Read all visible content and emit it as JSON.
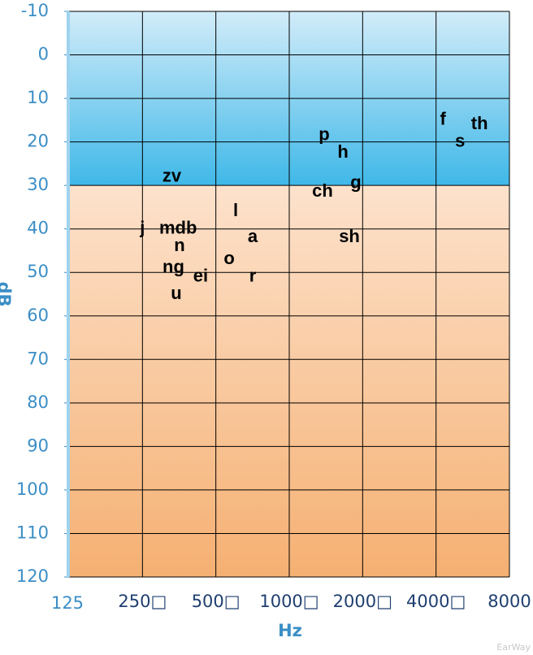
{
  "chart_data": {
    "type": "scatter",
    "x_label": "Hz",
    "y_label": "dB",
    "watermark": "EarWay",
    "x_log": true,
    "y_inverted": true,
    "grid": true,
    "xlim": [
      125,
      8000
    ],
    "ylim": [
      -10,
      120
    ],
    "xticks": [
      125,
      {
        "value": 250,
        "label": "250□"
      },
      {
        "value": 500,
        "label": "500□"
      },
      {
        "value": 1000,
        "label": "1000□"
      },
      {
        "value": 2000,
        "label": "2000□"
      },
      {
        "value": 4000,
        "label": "4000□"
      },
      8000
    ],
    "yticks": [
      -10,
      0,
      10,
      20,
      30,
      40,
      50,
      60,
      70,
      80,
      90,
      100,
      110,
      120
    ],
    "bands": [
      {
        "from": -10,
        "to": 30,
        "color_top": "#d2ecf9",
        "color_bottom": "#3fb8e8"
      },
      {
        "from": 30,
        "to": 120,
        "color_top": "#fde2cc",
        "color_bottom": "#f5b072"
      }
    ],
    "points": [
      {
        "label": "zv",
        "x": 330,
        "y": 28
      },
      {
        "label": "j",
        "x": 250,
        "y": 40
      },
      {
        "label": "mdb",
        "x": 350,
        "y": 40
      },
      {
        "label": "n",
        "x": 355,
        "y": 44
      },
      {
        "label": "ng",
        "x": 335,
        "y": 49
      },
      {
        "label": "ei",
        "x": 433,
        "y": 51
      },
      {
        "label": "u",
        "x": 344,
        "y": 55
      },
      {
        "label": "l",
        "x": 603,
        "y": 36
      },
      {
        "label": "a",
        "x": 708,
        "y": 42
      },
      {
        "label": "o",
        "x": 567,
        "y": 47
      },
      {
        "label": "r",
        "x": 708,
        "y": 51
      },
      {
        "label": "p",
        "x": 1390,
        "y": 18.5
      },
      {
        "label": "h",
        "x": 1660,
        "y": 22.5
      },
      {
        "label": "ch",
        "x": 1370,
        "y": 31.5
      },
      {
        "label": "g",
        "x": 1875,
        "y": 29.5
      },
      {
        "label": "sh",
        "x": 1765,
        "y": 42
      },
      {
        "label": "f",
        "x": 4270,
        "y": 15
      },
      {
        "label": "s",
        "x": 5020,
        "y": 20
      },
      {
        "label": "th",
        "x": 6030,
        "y": 16
      }
    ]
  }
}
